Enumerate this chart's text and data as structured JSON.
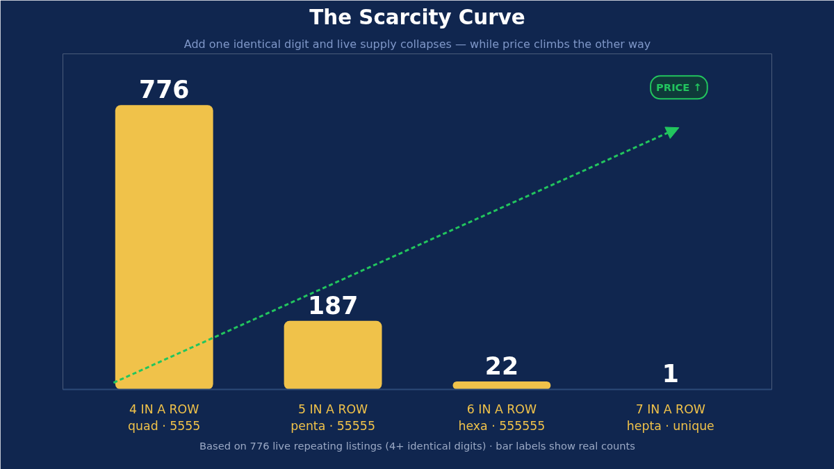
{
  "chart_data": {
    "type": "bar",
    "title": "The Scarcity Curve",
    "subtitle": "Add one identical digit and live supply collapses — while price climbs the other way",
    "categories": [
      "4 IN A ROW\nquad · 5555",
      "5 IN A ROW\npenta · 55555",
      "6 IN A ROW\nhexa · 555555",
      "7 IN A ROW\nhepta · unique"
    ],
    "values": [
      776,
      187,
      22,
      1
    ],
    "colors": [
      "#f0c24a",
      "#f0c24a",
      "#f0c24a",
      "#e0194a"
    ],
    "data_labels": true,
    "grid": false,
    "annotations": [
      "PRICE ↑",
      "Based on 776 live repeating listings (4+ identical digits) · bar labels show real counts"
    ]
  }
}
